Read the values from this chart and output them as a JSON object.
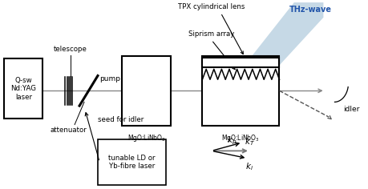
{
  "figsize": [
    4.59,
    2.36
  ],
  "dpi": 100,
  "bg_color": "#ffffff",
  "laser_label": "Q-sw\nNd:YAG\nlaser",
  "telescope_label": "telescope",
  "attenuator_label": "attenuator",
  "pump_label": "pump",
  "seed_label": "seed for idler",
  "crystal1_label": "MgO:LiNbO3",
  "crystal2_label": "MgO:LiNbO3",
  "siprism_label": "Siprism array",
  "tpx_label": "TPX cylindrical lens",
  "thz_label": "THz-wave",
  "idler_label": "idler",
  "tunable_label": "tunable LD or\nYb-fibre laser",
  "thz_color": "#b8d0e0",
  "line_color": "#000000",
  "beam_color": "#888888",
  "idler_color": "#555555",
  "thz_text_color": "#2255aa"
}
